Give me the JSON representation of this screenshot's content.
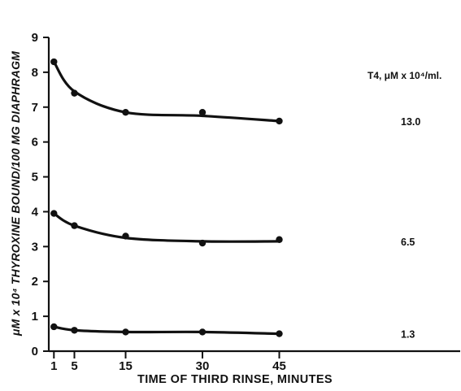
{
  "chart_data": {
    "type": "line",
    "title": "",
    "xlabel": "TIME OF THIRD RINSE, MINUTES",
    "ylabel": "μM x 10⁴ THYROXINE BOUND/100 MG DIAPHRAGM",
    "xlim": [
      0,
      55
    ],
    "ylim": [
      0,
      9
    ],
    "x_ticks": [
      1,
      5,
      15,
      30,
      45
    ],
    "y_ticks": [
      0,
      1,
      2,
      3,
      4,
      5,
      6,
      7,
      8,
      9
    ],
    "grid": false,
    "legend_title": "T4, μM x 10⁴/ml.",
    "series": [
      {
        "name": "13.0",
        "x": [
          1,
          5,
          15,
          30,
          45
        ],
        "y": [
          8.3,
          7.4,
          6.85,
          6.85,
          6.6
        ],
        "curve_y": [
          8.3,
          7.45,
          6.85,
          6.75,
          6.6
        ]
      },
      {
        "name": "6.5",
        "x": [
          1,
          5,
          15,
          30,
          45
        ],
        "y": [
          3.95,
          3.6,
          3.3,
          3.1,
          3.2
        ],
        "curve_y": [
          3.95,
          3.6,
          3.25,
          3.15,
          3.15
        ]
      },
      {
        "name": "1.3",
        "x": [
          1,
          5,
          15,
          30,
          45
        ],
        "y": [
          0.7,
          0.6,
          0.55,
          0.55,
          0.5
        ],
        "curve_y": [
          0.7,
          0.6,
          0.55,
          0.55,
          0.5
        ]
      }
    ]
  },
  "colors": {
    "ink": "#111111",
    "background": "#ffffff"
  }
}
